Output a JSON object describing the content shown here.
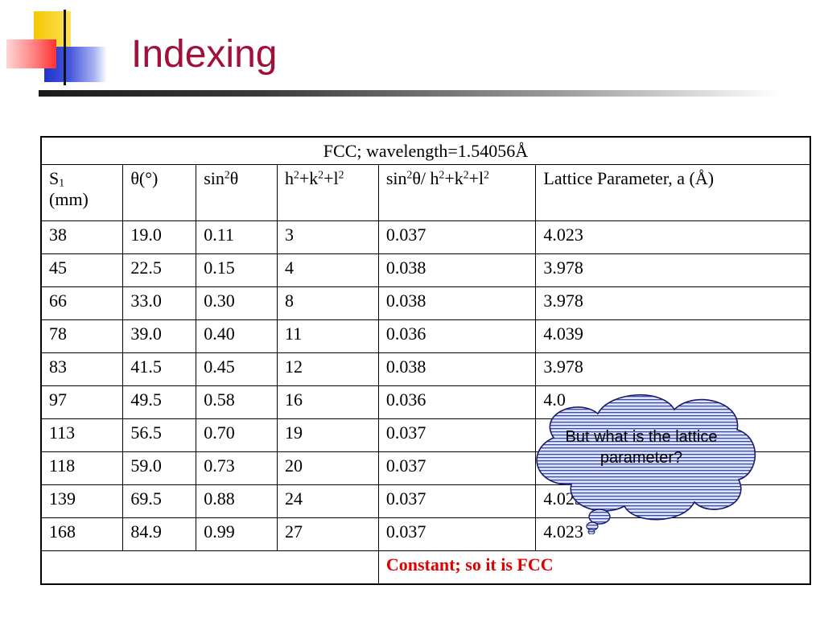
{
  "slide": {
    "title": "Indexing"
  },
  "table": {
    "caption": "FCC; wavelength=1.54056Å",
    "headers": {
      "s1_main": "S",
      "s1_sub": "1",
      "s1_unit": "(mm)",
      "theta": "θ(°)",
      "sin2_pre": "sin",
      "sin2_sup": "2",
      "sin2_post": "θ",
      "hkl_h": "h",
      "hkl_sup1": "2",
      "hkl_k": "+k",
      "hkl_sup2": "2",
      "hkl_l": "+l",
      "hkl_sup3": "2",
      "ratio_sin": "sin",
      "ratio_sup1": "2",
      "ratio_theta": "θ/ h",
      "ratio_sup2": "2",
      "ratio_k": "+k",
      "ratio_sup3": "2",
      "ratio_l": "+l",
      "ratio_sup4": "2",
      "lattice": "Lattice Parameter, a  (Å)"
    },
    "rows": [
      [
        "38",
        "19.0",
        "0.11",
        "3",
        "0.037",
        "4.023"
      ],
      [
        "45",
        "22.5",
        "0.15",
        "4",
        "0.038",
        "3.978"
      ],
      [
        "66",
        "33.0",
        "0.30",
        "8",
        "0.038",
        "3.978"
      ],
      [
        "78",
        "39.0",
        "0.40",
        "11",
        "0.036",
        "4.039"
      ],
      [
        "83",
        "41.5",
        "0.45",
        "12",
        "0.038",
        "3.978"
      ],
      [
        "97",
        "49.5",
        "0.58",
        "16",
        "0.036",
        "4.0"
      ],
      [
        "113",
        "56.5",
        "0.70",
        "19",
        "0.037",
        ""
      ],
      [
        "118",
        "59.0",
        "0.73",
        "20",
        "0.037",
        ""
      ],
      [
        "139",
        "69.5",
        "0.88",
        "24",
        "0.037",
        "4.023"
      ],
      [
        "168",
        "84.9",
        "0.99",
        "27",
        "0.037",
        "4.023"
      ]
    ],
    "footer": "Constant; so it is FCC"
  },
  "callout": {
    "text": "But what is the lattice parameter?"
  },
  "colors": {
    "title": "#a0103a",
    "footer": "#e00000",
    "bubble_stroke": "#1a1a6e",
    "bubble_fill": "#dfe4f5",
    "bubble_stripe": "#3a4aa8"
  }
}
